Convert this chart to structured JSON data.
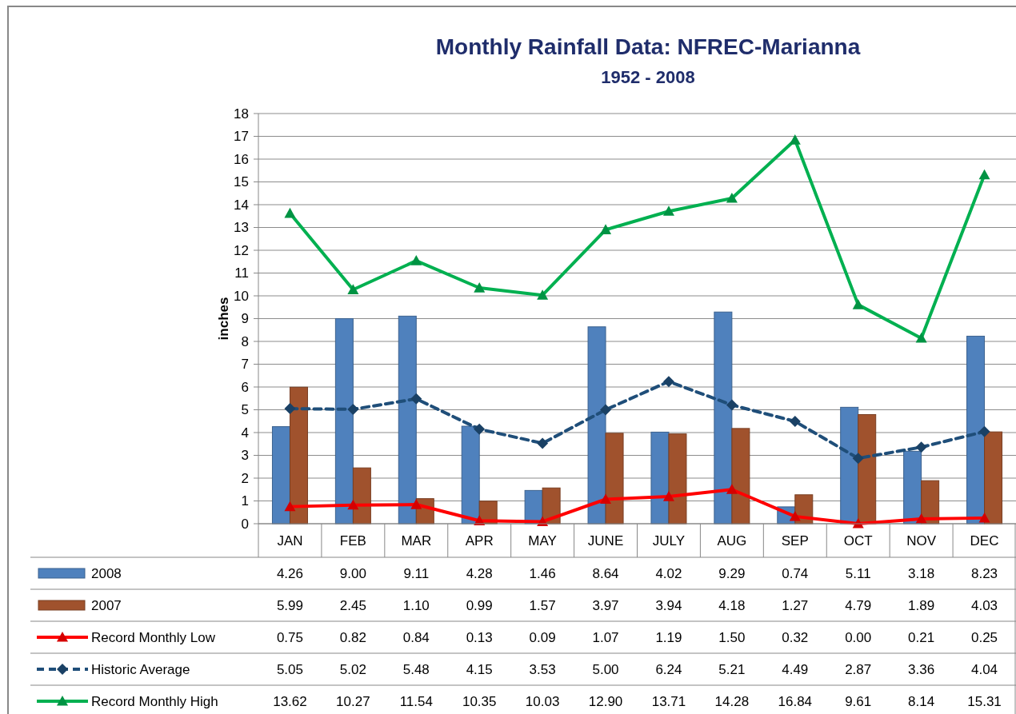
{
  "chart_data": {
    "type": "bar",
    "title": "Monthly Rainfall Data: NFREC-Marianna",
    "subtitle": "1952 - 2008",
    "ylabel": "inches",
    "categories": [
      "JAN",
      "FEB",
      "MAR",
      "APR",
      "MAY",
      "JUNE",
      "JULY",
      "AUG",
      "SEP",
      "OCT",
      "NOV",
      "DEC"
    ],
    "series": [
      {
        "name": "2008",
        "color": "#4f81bd",
        "values": [
          4.26,
          9.0,
          9.11,
          4.28,
          1.46,
          8.64,
          4.02,
          9.29,
          0.74,
          5.11,
          3.18,
          8.23
        ],
        "value_labels": [
          "4.26",
          "9.00",
          "9.11",
          "4.28",
          "1.46",
          "8.64",
          "4.02",
          "9.29",
          "0.74",
          "5.11",
          "3.18",
          "8.23"
        ]
      },
      {
        "name": "2007",
        "color": "#a0522d",
        "values": [
          5.99,
          2.45,
          1.1,
          0.99,
          1.57,
          3.97,
          3.94,
          4.18,
          1.27,
          4.79,
          1.89,
          4.03
        ],
        "value_labels": [
          "5.99",
          "2.45",
          "1.10",
          "0.99",
          "1.57",
          "3.97",
          "3.94",
          "4.18",
          "1.27",
          "4.79",
          "1.89",
          "4.03"
        ]
      },
      {
        "name": "Record Monthly Low",
        "type": "line",
        "color": "#ff0000",
        "marker": "triangle",
        "line_style": "solid",
        "values": [
          0.75,
          0.82,
          0.84,
          0.13,
          0.09,
          1.07,
          1.19,
          1.5,
          0.32,
          0.0,
          0.21,
          0.25
        ],
        "value_labels": [
          "0.75",
          "0.82",
          "0.84",
          "0.13",
          "0.09",
          "1.07",
          "1.19",
          "1.50",
          "0.32",
          "0.00",
          "0.21",
          "0.25"
        ]
      },
      {
        "name": "Historic Average",
        "type": "line",
        "color": "#1f4e79",
        "marker": "diamond",
        "line_style": "dashed",
        "values": [
          5.05,
          5.02,
          5.48,
          4.15,
          3.53,
          5.0,
          6.24,
          5.21,
          4.49,
          2.87,
          3.36,
          4.04
        ],
        "value_labels": [
          "5.05",
          "5.02",
          "5.48",
          "4.15",
          "3.53",
          "5.00",
          "6.24",
          "5.21",
          "4.49",
          "2.87",
          "3.36",
          "4.04"
        ]
      },
      {
        "name": "Record Monthly High",
        "type": "line",
        "color": "#00b050",
        "marker": "triangle",
        "line_style": "solid",
        "values": [
          13.62,
          10.27,
          11.54,
          10.35,
          10.03,
          12.9,
          13.71,
          14.28,
          16.84,
          9.61,
          8.14,
          15.31
        ],
        "value_labels": [
          "13.62",
          "10.27",
          "11.54",
          "10.35",
          "10.03",
          "12.90",
          "13.71",
          "14.28",
          "16.84",
          "9.61",
          "8.14",
          "15.31"
        ]
      }
    ],
    "ylim": [
      0,
      18
    ],
    "yticks": [
      0,
      1,
      2,
      3,
      4,
      5,
      6,
      7,
      8,
      9,
      10,
      11,
      12,
      13,
      14,
      15,
      16,
      17,
      18
    ],
    "grid": "y",
    "legend": "bottom"
  }
}
